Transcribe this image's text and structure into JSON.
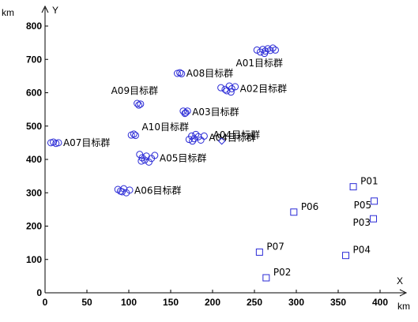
{
  "chart_data": {
    "type": "scatter",
    "x_unit": "km",
    "y_unit": "km",
    "x_axis_name": "X",
    "y_axis_name": "Y",
    "xlim": [
      0,
      400
    ],
    "ylim": [
      0,
      800
    ],
    "x_ticks": [
      "0",
      "50",
      "100",
      "150",
      "200",
      "250",
      "300",
      "350",
      "400"
    ],
    "y_ticks": [
      "0",
      "100",
      "200",
      "300",
      "400",
      "500",
      "600",
      "700",
      "800"
    ],
    "grid": false,
    "target_groups": [
      {
        "label": "A01目标群",
        "points": [
          [
            253,
            728
          ],
          [
            257,
            722
          ],
          [
            260,
            730
          ],
          [
            263,
            725
          ],
          [
            266,
            732
          ],
          [
            269,
            727
          ],
          [
            272,
            734
          ],
          [
            275,
            728
          ],
          [
            262,
            718
          ]
        ]
      },
      {
        "label": "A02目标群",
        "points": [
          [
            210,
            615
          ],
          [
            215,
            610
          ],
          [
            220,
            620
          ],
          [
            223,
            612
          ],
          [
            227,
            618
          ],
          [
            222,
            602
          ],
          [
            217,
            606
          ]
        ]
      },
      {
        "label": "A03目标群",
        "points": [
          [
            165,
            545
          ],
          [
            168,
            540
          ],
          [
            170,
            545
          ],
          [
            167,
            538
          ]
        ]
      },
      {
        "label": "A04目标群",
        "points": [
          [
            172,
            460
          ],
          [
            175,
            470
          ],
          [
            178,
            462
          ],
          [
            180,
            475
          ],
          [
            183,
            468
          ],
          [
            186,
            458
          ],
          [
            190,
            470
          ],
          [
            176,
            455
          ]
        ]
      },
      {
        "label": "A05目标群",
        "points": [
          [
            113,
            415
          ],
          [
            116,
            405
          ],
          [
            119,
            398
          ],
          [
            121,
            410
          ],
          [
            124,
            392
          ],
          [
            127,
            403
          ],
          [
            131,
            412
          ],
          [
            115,
            395
          ]
        ]
      },
      {
        "label": "A06目标群",
        "points": [
          [
            87,
            310
          ],
          [
            90,
            305
          ],
          [
            94,
            312
          ],
          [
            97,
            300
          ],
          [
            101,
            308
          ],
          [
            92,
            303
          ]
        ]
      },
      {
        "label": "A07目标群",
        "points": [
          [
            7,
            450
          ],
          [
            10,
            452
          ],
          [
            13,
            448
          ],
          [
            16,
            450
          ]
        ]
      },
      {
        "label": "A08目标群",
        "points": [
          [
            158,
            658
          ],
          [
            161,
            660
          ],
          [
            163,
            657
          ]
        ]
      },
      {
        "label": "A09目标群",
        "points": [
          [
            110,
            568
          ],
          [
            112,
            563
          ],
          [
            114,
            566
          ]
        ]
      },
      {
        "label": "A10目标群",
        "points": [
          [
            103,
            473
          ],
          [
            106,
            476
          ],
          [
            108,
            472
          ]
        ]
      }
    ],
    "group_annotations": [
      {
        "text": "A04目标群",
        "at": [
          211,
          455
        ]
      }
    ],
    "positions": [
      {
        "label": "P01",
        "point": [
          368,
          318
        ]
      },
      {
        "label": "P02",
        "point": [
          264,
          45
        ]
      },
      {
        "label": "P03",
        "point": [
          392,
          222
        ]
      },
      {
        "label": "P04",
        "point": [
          359,
          112
        ]
      },
      {
        "label": "P05",
        "point": [
          393,
          275
        ]
      },
      {
        "label": "P06",
        "point": [
          297,
          242
        ]
      },
      {
        "label": "P07",
        "point": [
          256,
          122
        ]
      }
    ]
  }
}
